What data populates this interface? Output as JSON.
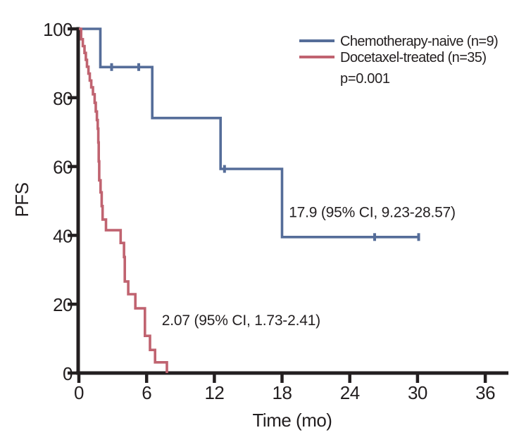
{
  "figure": {
    "background": "#ffffff",
    "text_color": "#231f20",
    "axis_color": "#231f20"
  },
  "chart_data": {
    "type": "line",
    "subtype": "kaplan_meier_step",
    "title": "",
    "xlabel": "Time (mo)",
    "ylabel": "PFS",
    "xlim": [
      0,
      38
    ],
    "ylim": [
      0,
      100
    ],
    "xticks": [
      0,
      6,
      12,
      18,
      24,
      30,
      36
    ],
    "yticks": [
      0,
      20,
      40,
      60,
      80,
      100
    ],
    "grid": false,
    "legend_position": "top-right",
    "p_value_label": "p=0.001",
    "series": [
      {
        "name": "Chemotherapy-naive (n=9)",
        "color": "#556d99",
        "steps": [
          [
            0,
            100
          ],
          [
            1.9,
            88.9
          ],
          [
            6.5,
            74.1
          ],
          [
            12.55,
            59.3
          ],
          [
            18,
            39.5
          ]
        ],
        "end_time": 30.1,
        "censors": [
          [
            2.9,
            88.9
          ],
          [
            5.3,
            88.9
          ],
          [
            12.9,
            59.3
          ],
          [
            26.2,
            39.5
          ],
          [
            30.1,
            39.5
          ]
        ],
        "median_label": "17.9 (95% CI, 9.23-28.57)"
      },
      {
        "name": "Docetaxel-treated (n=35)",
        "color": "#c06370",
        "steps": [
          [
            0,
            100
          ],
          [
            0.2,
            97
          ],
          [
            0.35,
            95
          ],
          [
            0.5,
            93
          ],
          [
            0.62,
            91
          ],
          [
            0.72,
            89
          ],
          [
            0.85,
            87
          ],
          [
            0.97,
            85
          ],
          [
            1.1,
            83
          ],
          [
            1.25,
            81
          ],
          [
            1.4,
            78.5
          ],
          [
            1.5,
            76
          ],
          [
            1.6,
            73.5
          ],
          [
            1.67,
            71
          ],
          [
            1.72,
            67
          ],
          [
            1.76,
            61.5
          ],
          [
            1.8,
            56
          ],
          [
            1.92,
            52.5
          ],
          [
            2.02,
            48.5
          ],
          [
            2.1,
            44.6
          ],
          [
            2.4,
            41.5
          ],
          [
            3.7,
            37.8
          ],
          [
            4.0,
            33.7
          ],
          [
            4.07,
            26.6
          ],
          [
            4.37,
            22.9
          ],
          [
            5.0,
            18.8
          ],
          [
            5.85,
            10.8
          ],
          [
            6.3,
            6.7
          ],
          [
            6.75,
            3.1
          ],
          [
            7.8,
            0
          ]
        ],
        "end_time": 7.8,
        "censors": [],
        "median_label": "2.07 (95% CI, 1.73-2.41)"
      }
    ],
    "annotations": [
      {
        "series": "Chemotherapy-naive (n=9)",
        "text": "17.9 (95% CI, 9.23-28.57)",
        "t": 18.6,
        "v": 46.6
      },
      {
        "series": "Docetaxel-treated (n=35)",
        "text": "2.07 (95% CI, 1.73-2.41)",
        "t": 7.35,
        "v": 15.2
      }
    ]
  }
}
